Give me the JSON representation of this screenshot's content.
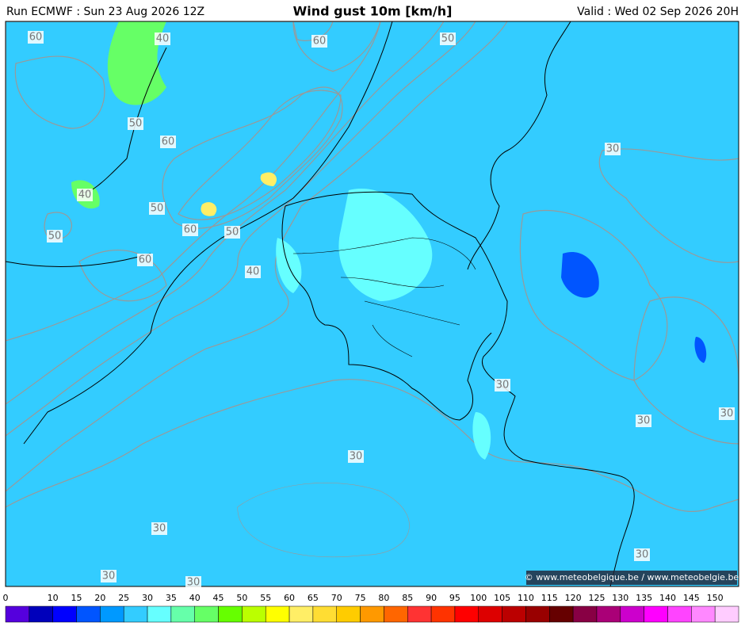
{
  "header": {
    "run": "Run ECMWF : Sun 23 Aug 2026 12Z",
    "title": "Wind gust 10m [km/h]",
    "valid": "Valid : Wed 02 Sep 2026 20H"
  },
  "contour_labels": [
    60,
    40,
    60,
    50,
    50,
    60,
    40,
    50,
    50,
    60,
    50,
    60,
    40,
    30,
    30,
    30,
    30,
    30,
    30,
    30,
    30,
    30
  ],
  "colorbar": {
    "ticks": [
      0,
      10,
      15,
      20,
      25,
      30,
      35,
      40,
      45,
      50,
      55,
      60,
      65,
      70,
      75,
      80,
      85,
      90,
      95,
      100,
      105,
      110,
      115,
      120,
      125,
      130,
      135,
      140,
      145,
      150
    ],
    "colors": [
      "#5500dd",
      "#0000bb",
      "#0000ff",
      "#0055ff",
      "#0099ff",
      "#33ccff",
      "#66ffff",
      "#66ffaa",
      "#66ff66",
      "#66ff00",
      "#bbff00",
      "#ffff00",
      "#ffee66",
      "#ffdd33",
      "#ffcc00",
      "#ff9900",
      "#ff6600",
      "#ff3333",
      "#ff3300",
      "#ff0000",
      "#dd0000",
      "#bb0000",
      "#990000",
      "#660000",
      "#880044",
      "#aa0077",
      "#cc00cc",
      "#ff00ff",
      "#ff44ff",
      "#ff88ff",
      "#ffccff"
    ]
  },
  "credit": "© www.meteobelgique.be / www.meteobelgie.be"
}
